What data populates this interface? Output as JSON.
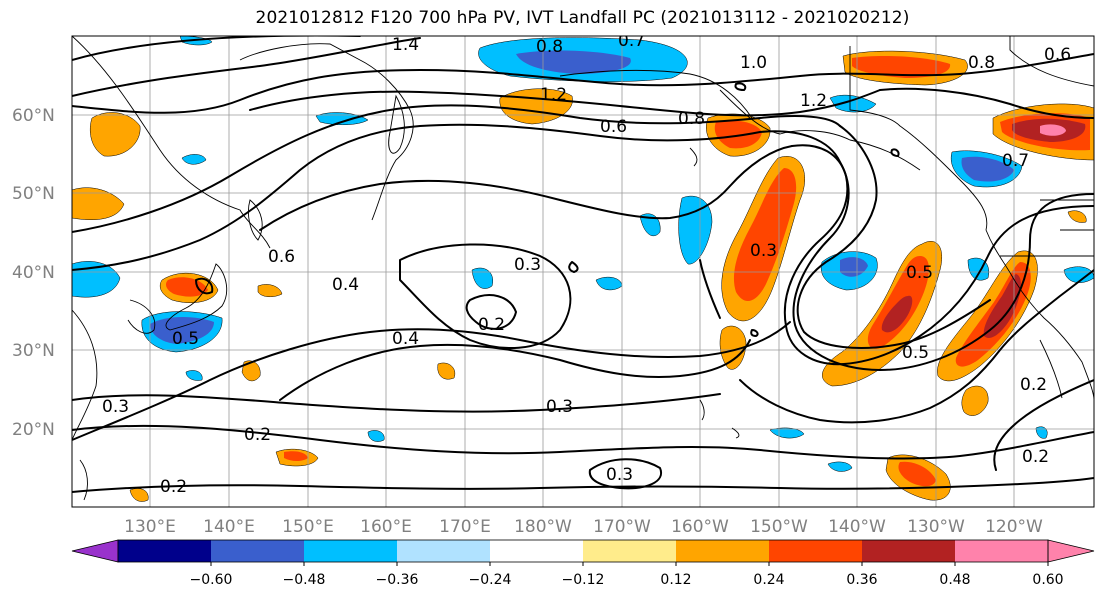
{
  "title": "2021012812 F120 700 hPa PV, IVT Landfall PC (2021013112 - 2021020212)",
  "map": {
    "lat_labels": [
      "60°N",
      "50°N",
      "40°N",
      "30°N",
      "20°N"
    ],
    "lon_labels": [
      "130°E",
      "140°E",
      "150°E",
      "160°E",
      "170°E",
      "180°W",
      "170°W",
      "160°W",
      "150°W",
      "140°W",
      "130°W",
      "120°W"
    ],
    "contour_labels": [
      "1.4",
      "0.8",
      "0.7",
      "1.0",
      "0.8",
      "0.6",
      "1.2",
      "0.6",
      "0.8",
      "1.2",
      "0.7",
      "0.6",
      "0.4",
      "0.3",
      "0.2",
      "0.4",
      "0.3",
      "0.5",
      "0.5",
      "0.5",
      "0.3",
      "0.3",
      "0.2",
      "0.3",
      "0.2",
      "0.2",
      "0.2"
    ]
  },
  "colorbar": {
    "ticks": [
      "−0.60",
      "−0.48",
      "−0.36",
      "−0.24",
      "−0.12",
      "0.12",
      "0.24",
      "0.36",
      "0.48",
      "0.60"
    ],
    "colors": {
      "under": "#9932cc",
      "bins": [
        "#00008b",
        "#3a5fcd",
        "#00bfff",
        "#b0e2ff",
        "#ffffff",
        "#ffec8b",
        "#ffa500",
        "#ff4500",
        "#b22222",
        "#ff82ab"
      ],
      "over": "#ff82ab"
    }
  }
}
